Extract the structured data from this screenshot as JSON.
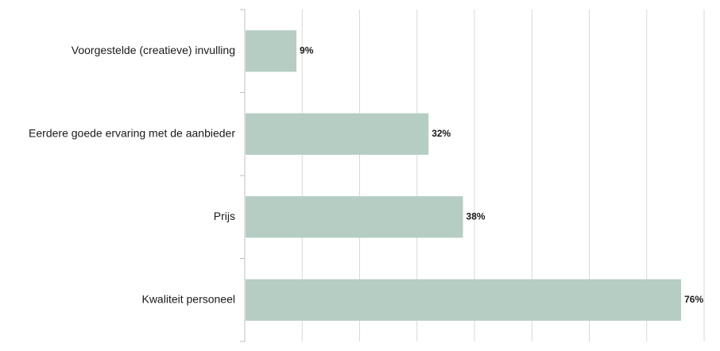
{
  "chart_data": {
    "type": "bar",
    "orientation": "horizontal",
    "categories": [
      "Voorgestelde (creatieve) invulling",
      "Eerdere goede ervaring met de aanbieder",
      "Prijs",
      "Kwaliteit personeel"
    ],
    "values": [
      9,
      32,
      38,
      76
    ],
    "value_labels": [
      "9%",
      "32%",
      "38%",
      "76%"
    ],
    "xlim": [
      0,
      80
    ],
    "x_grid_step": 10,
    "grid": true,
    "bar_color": "#b5cdc3",
    "title": "",
    "xlabel": "",
    "ylabel": ""
  }
}
